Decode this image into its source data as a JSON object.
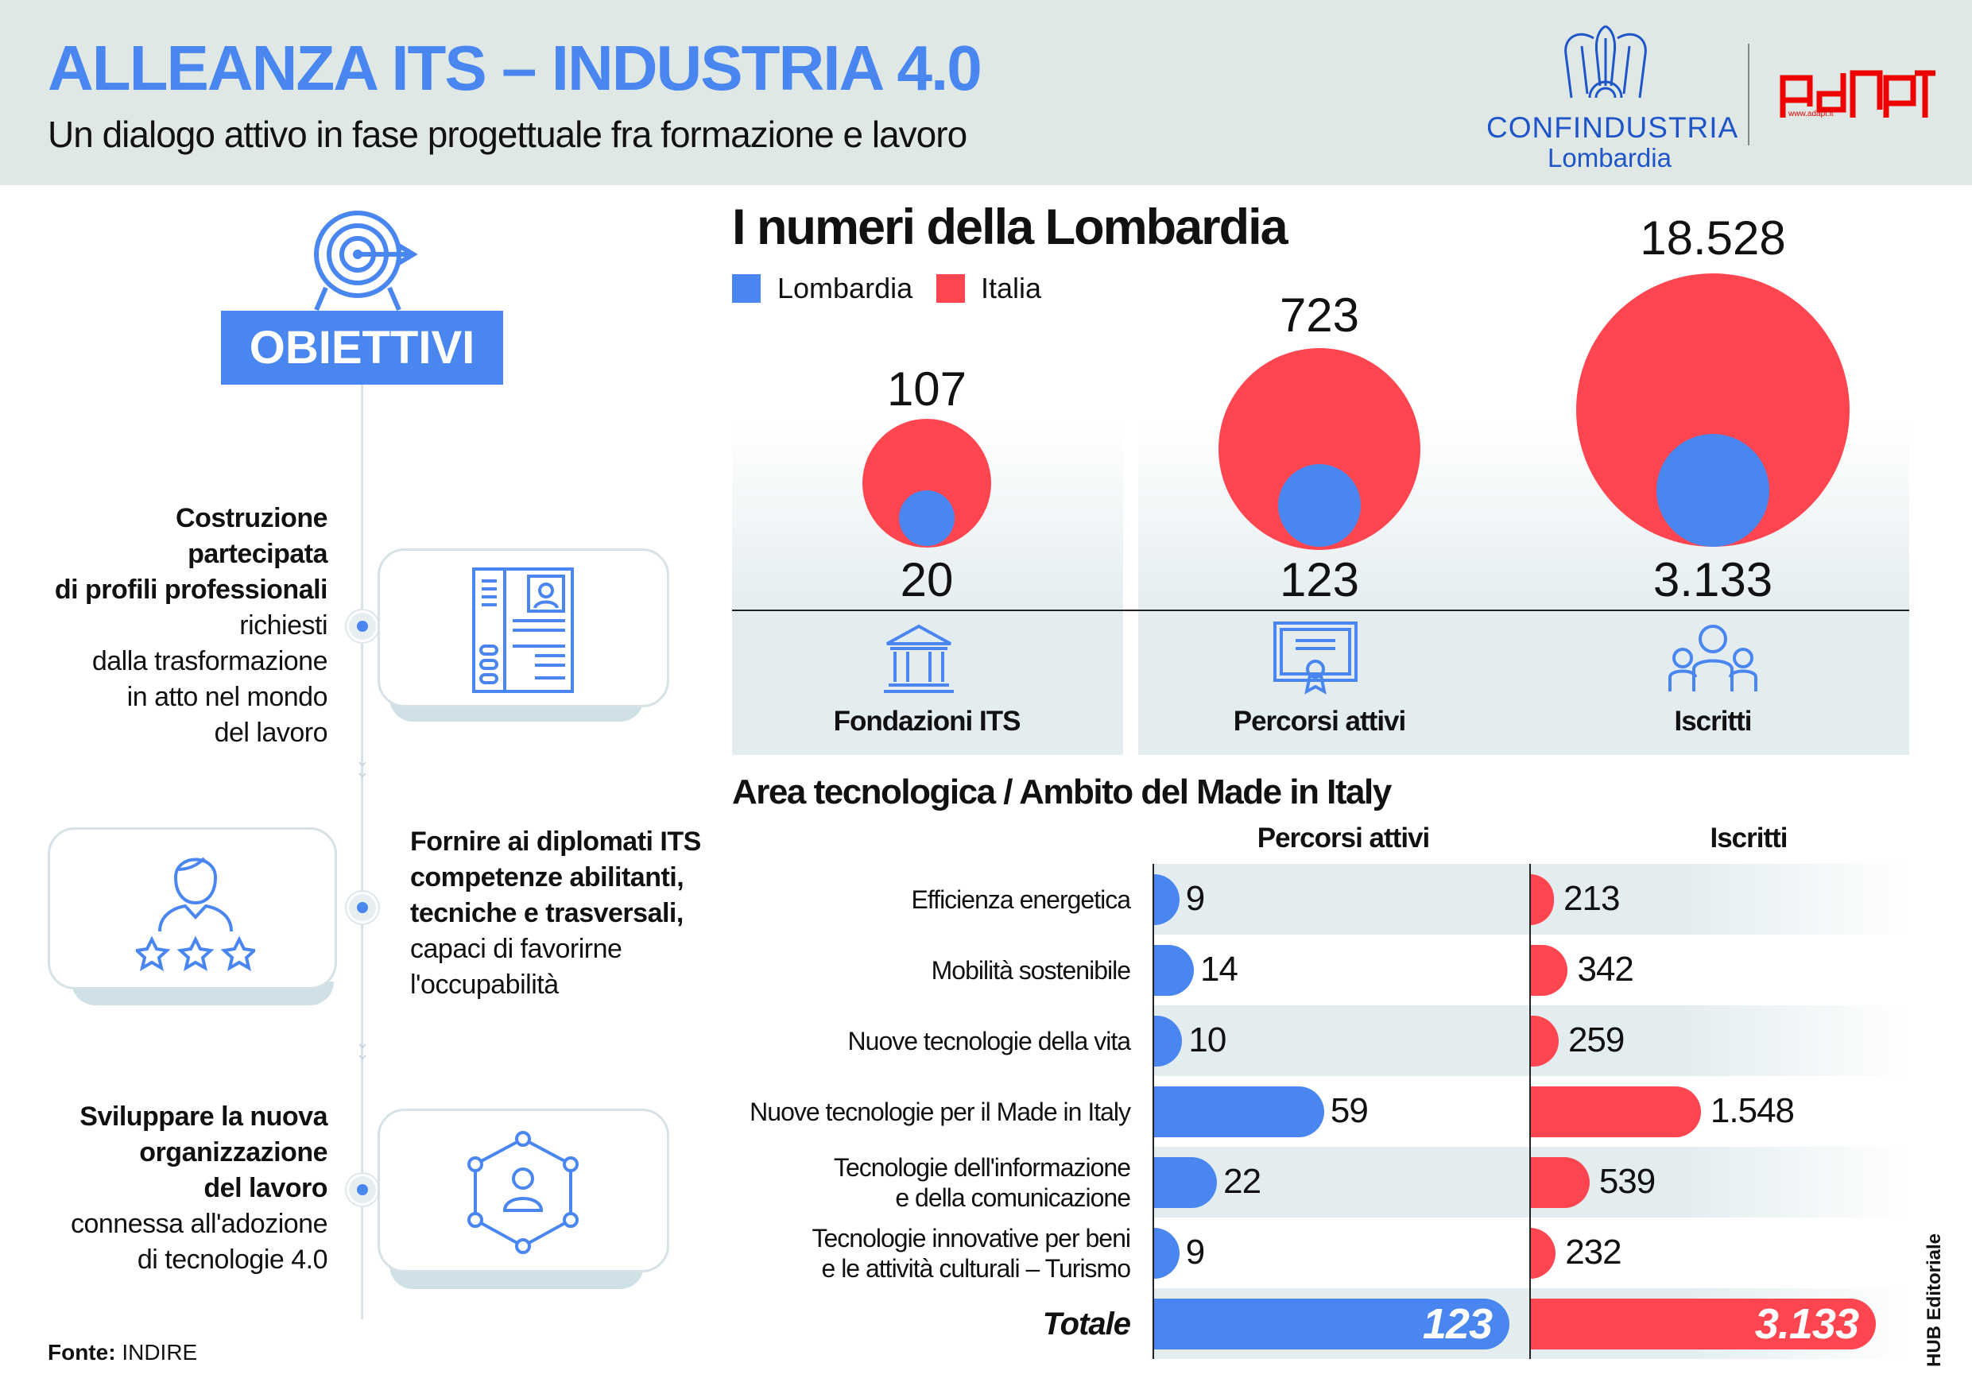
{
  "header": {
    "title": "ALLEANZA ITS – INDUSTRIA 4.0",
    "subtitle": "Un dialogo attivo in fase progettuale fra formazione e lavoro",
    "logos": {
      "confindustria": "CONFINDUSTRIA",
      "confindustria_sub": "Lombardia",
      "adapt": "ADAPT",
      "adapt_url": "www.adapt.it"
    }
  },
  "objectives": {
    "label": "OBIETTIVI",
    "items": [
      {
        "bold": [
          "Costruzione",
          "partecipata",
          "di profili professionali"
        ],
        "regular": [
          "richiesti",
          "dalla trasformazione",
          "in atto nel mondo",
          "del lavoro"
        ],
        "icon": "cv-profile-icon"
      },
      {
        "bold": [
          "Fornire ai diplomati ITS",
          "competenze abilitanti,",
          "tecniche e trasversali,"
        ],
        "regular": [
          "capaci di favorirne",
          "l'occupabilità"
        ],
        "icon": "person-stars-icon"
      },
      {
        "bold": [
          "Sviluppare la nuova",
          "organizzazione",
          "del lavoro"
        ],
        "regular": [
          "connessa all'adozione",
          "di tecnologie 4.0"
        ],
        "icon": "network-person-icon"
      }
    ]
  },
  "numbers": {
    "title": "I numeri della Lombardia",
    "legend": [
      {
        "label": "Lombardia",
        "color": "#4a86f0"
      },
      {
        "label": "Italia",
        "color": "#ff4550"
      }
    ]
  },
  "bars": {
    "title": "Area tecnologica / Ambito del Made in Italy",
    "col_percorsi": "Percorsi attivi",
    "col_iscritti": "Iscritti"
  },
  "chart_data": [
    {
      "type": "bubble",
      "categories": [
        "Fondazioni ITS",
        "Percorsi attivi",
        "Iscritti"
      ],
      "icons": [
        "institution-building-icon",
        "certificate-icon",
        "group-people-icon"
      ],
      "series": [
        {
          "name": "Lombardia",
          "values": [
            20,
            123,
            3133
          ],
          "labels": [
            "20",
            "123",
            "3.133"
          ],
          "color": "#4a86f0"
        },
        {
          "name": "Italia",
          "values": [
            107,
            723,
            18528
          ],
          "labels": [
            "107",
            "723",
            "18.528"
          ],
          "color": "#ff4550"
        }
      ]
    },
    {
      "type": "bar",
      "orientation": "horizontal",
      "categories": [
        [
          "Efficienza energetica"
        ],
        [
          "Mobilità sostenibile"
        ],
        [
          "Nuove tecnologie della vita"
        ],
        [
          "Nuove tecnologie per il Made in Italy"
        ],
        [
          "Tecnologie dell'informazione",
          "e della comunicazione"
        ],
        [
          "Tecnologie innovative per beni",
          "e le attività culturali – Turismo"
        ]
      ],
      "series": [
        {
          "name": "Percorsi attivi",
          "values": [
            9,
            14,
            10,
            59,
            22,
            9
          ],
          "labels": [
            "9",
            "14",
            "10",
            "59",
            "22",
            "9"
          ],
          "color": "#4a86f0"
        },
        {
          "name": "Iscritti",
          "values": [
            213,
            342,
            259,
            1548,
            539,
            232
          ],
          "labels": [
            "213",
            "342",
            "259",
            "1.548",
            "539",
            "232"
          ],
          "color": "#ff4550"
        }
      ],
      "total": {
        "label": "Totale",
        "values": [
          123,
          3133
        ],
        "labels": [
          "123",
          "3.133"
        ]
      }
    }
  ],
  "footer": {
    "source_label": "Fonte:",
    "source": "INDIRE",
    "credit": "HUB Editoriale"
  }
}
